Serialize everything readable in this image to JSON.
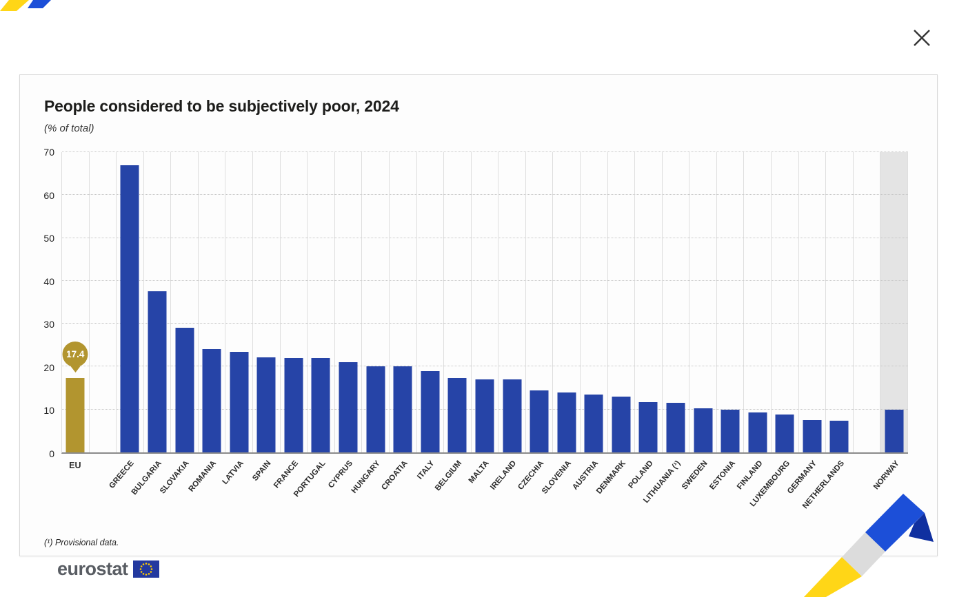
{
  "icons": {
    "close": "✕"
  },
  "footer": {
    "logo_text": "eurostat"
  },
  "decor": {
    "yellow": "#ffd617",
    "blue": "#1c4fd8",
    "gray": "#dcdcdc"
  },
  "chart_data": {
    "type": "bar",
    "title": "People considered to be subjectively poor, 2024",
    "subtitle": "(% of total)",
    "footnote": "(¹) Provisional data.",
    "xlabel": "",
    "ylabel": "% of total",
    "ylim": [
      0,
      70
    ],
    "ytick_interval": 10,
    "grid": true,
    "bar_color": "#2644a7",
    "eu_color": "#b2952f",
    "band_color": "#e4e4e4",
    "series": [
      {
        "label": "EU",
        "value": 17.4,
        "group": "eu",
        "color": "#b2952f",
        "callout": "17.4"
      },
      {
        "label": "GREECE",
        "value": 67.0,
        "group": "eu-member"
      },
      {
        "label": "BULGARIA",
        "value": 37.6,
        "group": "eu-member"
      },
      {
        "label": "SLOVAKIA",
        "value": 29.1,
        "group": "eu-member"
      },
      {
        "label": "ROMANIA",
        "value": 24.1,
        "group": "eu-member"
      },
      {
        "label": "LATVIA",
        "value": 23.5,
        "group": "eu-member"
      },
      {
        "label": "SPAIN",
        "value": 22.1,
        "group": "eu-member"
      },
      {
        "label": "FRANCE",
        "value": 22.0,
        "group": "eu-member"
      },
      {
        "label": "PORTUGAL",
        "value": 22.0,
        "group": "eu-member"
      },
      {
        "label": "CYPRUS",
        "value": 21.0,
        "group": "eu-member"
      },
      {
        "label": "HUNGARY",
        "value": 20.0,
        "group": "eu-member"
      },
      {
        "label": "CROATIA",
        "value": 20.0,
        "group": "eu-member"
      },
      {
        "label": "ITALY",
        "value": 19.0,
        "group": "eu-member"
      },
      {
        "label": "BELGIUM",
        "value": 17.4,
        "group": "eu-member"
      },
      {
        "label": "MALTA",
        "value": 17.1,
        "group": "eu-member"
      },
      {
        "label": "IRELAND",
        "value": 17.0,
        "group": "eu-member"
      },
      {
        "label": "CZECHIA",
        "value": 14.5,
        "group": "eu-member"
      },
      {
        "label": "SLOVENIA",
        "value": 13.9,
        "group": "eu-member"
      },
      {
        "label": "AUSTRIA",
        "value": 13.5,
        "group": "eu-member"
      },
      {
        "label": "DENMARK",
        "value": 13.0,
        "group": "eu-member"
      },
      {
        "label": "POLAND",
        "value": 11.8,
        "group": "eu-member"
      },
      {
        "label": "LITHUANIA (¹)",
        "value": 11.6,
        "group": "eu-member"
      },
      {
        "label": "SWEDEN",
        "value": 10.2,
        "group": "eu-member"
      },
      {
        "label": "ESTONIA",
        "value": 10.0,
        "group": "eu-member"
      },
      {
        "label": "FINLAND",
        "value": 9.3,
        "group": "eu-member"
      },
      {
        "label": "LUXEMBOURG",
        "value": 8.8,
        "group": "eu-member"
      },
      {
        "label": "GERMANY",
        "value": 7.5,
        "group": "eu-member"
      },
      {
        "label": "NETHERLANDS",
        "value": 7.4,
        "group": "eu-member"
      },
      {
        "label": "NORWAY",
        "value": 10.0,
        "group": "non-eu",
        "band": true
      }
    ]
  }
}
